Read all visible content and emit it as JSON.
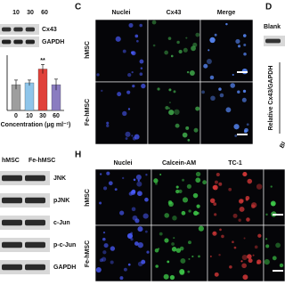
{
  "blot_top": {
    "lanes": [
      "10",
      "30",
      "60"
    ],
    "bands": [
      "Cx43",
      "GAPDH"
    ]
  },
  "chart_data": {
    "type": "bar",
    "x_label": "Concentration (μg ml⁻¹)",
    "categories": [
      "0",
      "10",
      "30",
      "60"
    ],
    "values": [
      0.28,
      0.3,
      0.45,
      0.28
    ],
    "errors": [
      0.05,
      0.03,
      0.05,
      0.06
    ],
    "colors": [
      "#9e9e9e",
      "#8ec5ea",
      "#e0413a",
      "#8a7cc0"
    ],
    "annotation": "**",
    "ylim": [
      0,
      0.6
    ]
  },
  "panel_c": {
    "label": "C",
    "columns": [
      "Nuclei",
      "Cx43",
      "Merge"
    ],
    "rows": [
      "hMSC",
      "Fe-hMSC"
    ]
  },
  "panel_d": {
    "label": "D",
    "header": "Blank",
    "y_label": "Relative Cx43/GAPDH",
    "x_label": "Bl"
  },
  "blot_bottom": {
    "lanes": [
      "hMSC",
      "Fe-hMSC"
    ],
    "bands": [
      "JNK",
      "pJNK",
      "c-Jun",
      "p-c-Jun",
      "GAPDH"
    ]
  },
  "panel_h": {
    "label": "H",
    "columns": [
      "Nuclei",
      "Calcein-AM",
      "TC-1"
    ],
    "rows": [
      "hMSC",
      "Fe-hMSC"
    ]
  }
}
